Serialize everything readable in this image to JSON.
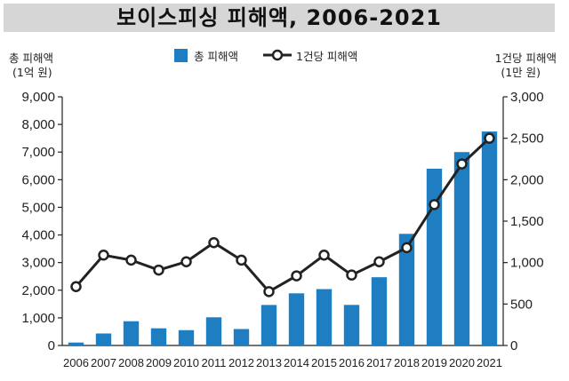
{
  "chart_data": {
    "type": "bar",
    "title": "보이스피싱 피해액, 2006-2021",
    "categories": [
      "2006",
      "2007",
      "2008",
      "2009",
      "2010",
      "2011",
      "2012",
      "2013",
      "2014",
      "2015",
      "2016",
      "2017",
      "2018",
      "2019",
      "2020",
      "2021"
    ],
    "series": [
      {
        "name": "총 피해액",
        "type": "bar",
        "axis": "left",
        "color": "#1f7dc2",
        "values": [
          106,
          434,
          877,
          621,
          554,
          1019,
          595,
          1466,
          1887,
          2040,
          1468,
          2470,
          4040,
          6398,
          7000,
          7744
        ]
      },
      {
        "name": "1건당 피해액",
        "type": "line",
        "axis": "right",
        "color": "#222222",
        "values": [
          710,
          1090,
          1030,
          910,
          1010,
          1240,
          1030,
          650,
          840,
          1090,
          850,
          1010,
          1180,
          1700,
          2190,
          2500
        ]
      }
    ],
    "y_left": {
      "label_line1": "총 피해액",
      "label_line2": "(1억 원)",
      "ylim": [
        0,
        9000
      ],
      "ticks": [
        "0",
        "1,000",
        "2,000",
        "3,000",
        "4,000",
        "5,000",
        "6,000",
        "7,000",
        "8,000",
        "9,000"
      ]
    },
    "y_right": {
      "label_line1": "1건당 피해액",
      "label_line2": "(1만 원)",
      "ylim": [
        0,
        3000
      ],
      "ticks": [
        "0",
        "500",
        "1,000",
        "1,500",
        "2,000",
        "2,500",
        "3,000"
      ]
    },
    "legend_position": "top-center",
    "grid": false
  }
}
